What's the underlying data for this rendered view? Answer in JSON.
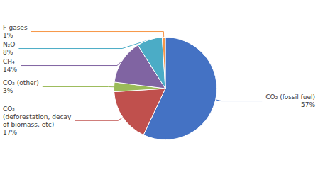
{
  "chart_data": {
    "type": "pie",
    "categories": [
      "CO₂ (fossil fuel)",
      "CO₂\n(deforestation, decay\nof biomass, etc)",
      "CO₂ (other)",
      "CH₄",
      "N₂O",
      "F-gases"
    ],
    "values": [
      57,
      17,
      3,
      14,
      8,
      1
    ],
    "value_labels": [
      "57%",
      "17%",
      "3%",
      "14%",
      "8%",
      "1%"
    ],
    "colors": [
      "#4472C4",
      "#C0504D",
      "#9BBB59",
      "#8064A2",
      "#4BACC6",
      "#F79646"
    ],
    "data_labels": true
  }
}
